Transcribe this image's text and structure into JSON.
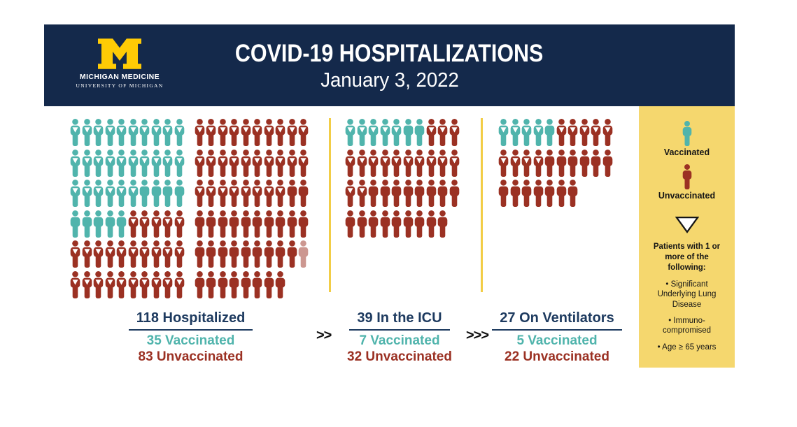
{
  "header": {
    "org": "MICHIGAN MEDICINE",
    "suborg": "UNIVERSITY OF MICHIGAN",
    "title": "COVID-19 HOSPITALIZATIONS",
    "date": "January 3, 2022"
  },
  "colors": {
    "header_navy": "#14294B",
    "label_navy": "#1D3A5F",
    "teal": "#50B4AC",
    "red": "#9B3123",
    "sidebar_yellow": "#F5D76E",
    "divider_gold": "#F2CD46",
    "logo_maize": "#FFCB05",
    "text_dark": "#161616"
  },
  "separators": {
    "first": ">>",
    "second": ">>>"
  },
  "legend": {
    "vaccinated_label": "Vaccinated",
    "unvaccinated_label": "Unvaccinated",
    "note_title": "Patients with 1 or more of the following:",
    "bullets": [
      "• Significant Underlying Lung Disease",
      "• Immuno-compromised",
      "• Age ≥ 65 years"
    ]
  },
  "chart_data": {
    "type": "pictograph",
    "title": "COVID-19 Hospitalizations",
    "date": "January 3, 2022",
    "unit_per_icon": 1,
    "categories": [
      "Hospitalized",
      "In the ICU",
      "On Ventilators"
    ],
    "totals": [
      118,
      39,
      27
    ],
    "series": [
      {
        "name": "Vaccinated",
        "color": "#50B4AC",
        "values": [
          35,
          7,
          5
        ]
      },
      {
        "name": "Unvaccinated",
        "color": "#9B3123",
        "values": [
          83,
          32,
          22
        ]
      }
    ],
    "triangle_marker_meaning": "Patients with 1 or more of: Significant Underlying Lung Disease, Immuno-compromised, Age ≥ 65 years",
    "icon_codes": {
      "T": "vaccinated-with-condition-triangle",
      "V": "vaccinated-solid",
      "U": "unvaccinated-with-condition-triangle",
      "S": "unvaccinated-solid",
      "F": "unvaccinated-solid-faded",
      " ": "column-gap"
    },
    "groups": [
      {
        "label": "118 Hospitalized",
        "vaccinated_label": "35 Vaccinated",
        "unvaccinated_label": "83 Unvaccinated",
        "rows": [
          "TTTTTTTTTT UUUUUUUUUU",
          "TTTTTTTTTT UUUUUUUUUU",
          "TTTTTTVVVV UUUUUUUUSS",
          "VVVVVUUUUU SSSSSSSSSS",
          "UUUUUUUUUU SSSSSSSSSF",
          "UUUUUUUUUU SSSSSSSS"
        ]
      },
      {
        "label": "39 In the ICU",
        "vaccinated_label": "7 Vaccinated",
        "unvaccinated_label": "32 Unvaccinated",
        "rows": [
          "TTTTTVVUUU",
          "UUUUUUUUUU",
          "UUSSSSSSSS",
          "SSSSSSSSS"
        ]
      },
      {
        "label": "27 On Ventilators",
        "vaccinated_label": "5 Vaccinated",
        "unvaccinated_label": "22 Unvaccinated",
        "rows": [
          "TTTTVUUUUU",
          "UUUUSSSSSS",
          "SSSSSSS"
        ]
      }
    ]
  }
}
